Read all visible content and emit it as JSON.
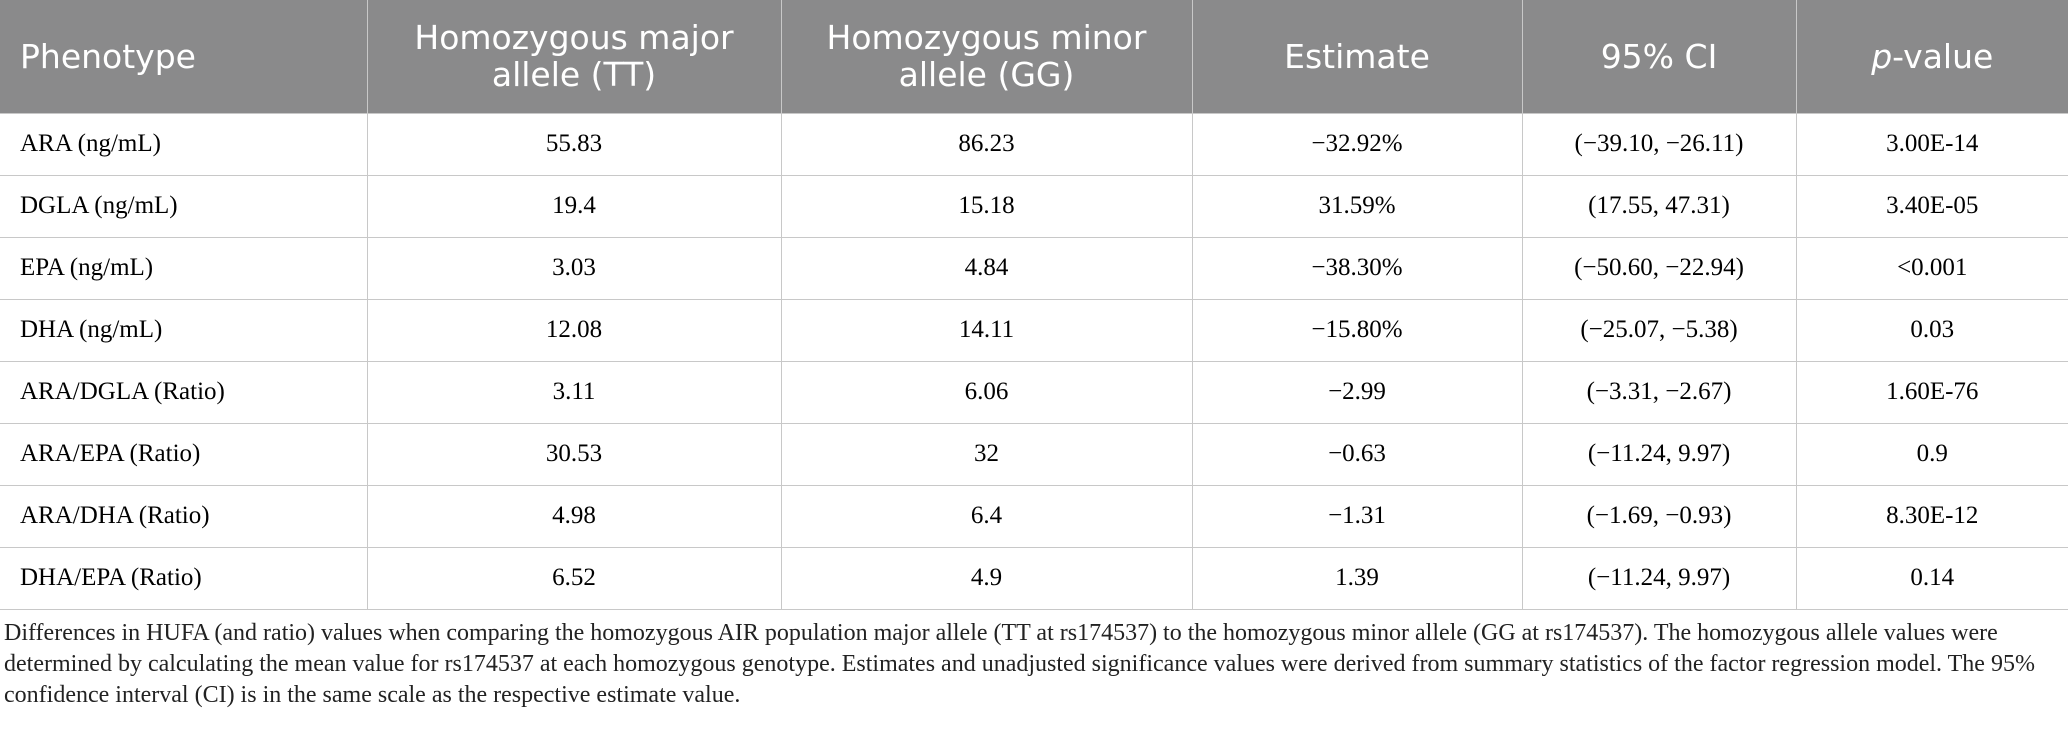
{
  "table": {
    "header": [
      "Phenotype",
      "Homozygous major allele (TT)",
      "Homozygous minor allele (GG)",
      "Estimate",
      "95% CI",
      [
        "p",
        "-value"
      ]
    ],
    "rows": [
      [
        "ARA (ng/mL)",
        "55.83",
        "86.23",
        "−32.92%",
        "(−39.10, −26.11)",
        "3.00E-14"
      ],
      [
        "DGLA (ng/mL)",
        "19.4",
        "15.18",
        "31.59%",
        "(17.55, 47.31)",
        "3.40E-05"
      ],
      [
        "EPA (ng/mL)",
        "3.03",
        "4.84",
        "−38.30%",
        "(−50.60, −22.94)",
        "<0.001"
      ],
      [
        "DHA (ng/mL)",
        "12.08",
        "14.11",
        "−15.80%",
        "(−25.07, −5.38)",
        "0.03"
      ],
      [
        "ARA/DGLA (Ratio)",
        "3.11",
        "6.06",
        "−2.99",
        "(−3.31, −2.67)",
        "1.60E-76"
      ],
      [
        "ARA/EPA (Ratio)",
        "30.53",
        "32",
        "−0.63",
        "(−11.24, 9.97)",
        "0.9"
      ],
      [
        "ARA/DHA (Ratio)",
        "4.98",
        "6.4",
        "−1.31",
        "(−1.69, −0.93)",
        "8.30E-12"
      ],
      [
        "DHA/EPA (Ratio)",
        "6.52",
        "4.9",
        "1.39",
        "(−11.24, 9.97)",
        "0.14"
      ]
    ]
  },
  "caption": "Differences in HUFA (and ratio) values when comparing the homozygous AIR population major allele (TT at rs174537) to the homozygous minor allele (GG at rs174537). The homozygous allele values were determined by calculating the mean value for rs174537 at each homozygous genotype. Estimates and unadjusted significance values were derived from summary statistics of the factor regression model. The 95% confidence interval (CI) is in the same scale as the respective estimate value."
}
